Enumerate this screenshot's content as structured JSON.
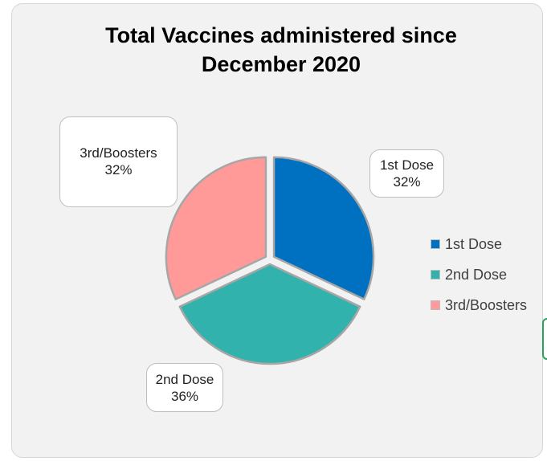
{
  "chart_data": {
    "type": "pie",
    "title_lines": [
      "Total Vaccines administered since",
      "December 2020"
    ],
    "slices": [
      {
        "label": "1st Dose",
        "percent_label": "32%",
        "value": 32,
        "color": "#0070c0"
      },
      {
        "label": "2nd Dose",
        "percent_label": "36%",
        "value": 36,
        "color": "#31b2ac"
      },
      {
        "label": "3rd/Boosters",
        "percent_label": "32%",
        "value": 32,
        "color": "#ff9a99"
      }
    ],
    "legend": {
      "position": "right",
      "entries": [
        "1st Dose",
        "2nd Dose",
        "3rd/Boosters"
      ]
    }
  },
  "colors": {
    "panel_background": "#f2f2f2",
    "slice_border": "#a6a6a6"
  }
}
